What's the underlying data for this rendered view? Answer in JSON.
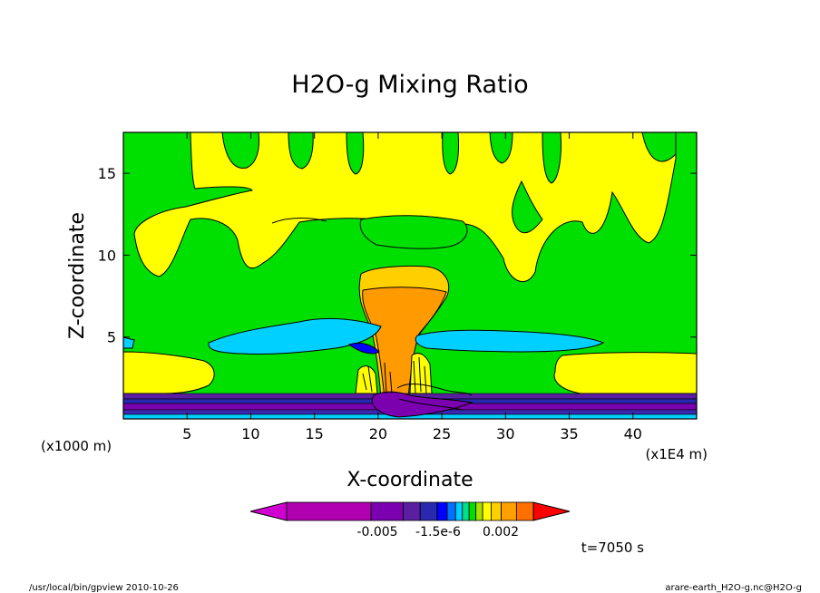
{
  "chart_data": {
    "type": "heatmap",
    "title": "H2O-g Mixing Ratio",
    "xlabel": "X-coordinate",
    "ylabel": "Z-coordinate",
    "x_unit_left": "(x1000 m)",
    "x_unit_right": "(x1E4 m)",
    "xlim": [
      0,
      45
    ],
    "ylim": [
      0,
      17.5
    ],
    "x_ticks": [
      5,
      10,
      15,
      20,
      25,
      30,
      35,
      40
    ],
    "x_tick_labels": [
      "5",
      "10",
      "15",
      "20",
      "25",
      "30",
      "35",
      "40"
    ],
    "y_ticks": [
      5,
      10,
      15
    ],
    "y_tick_labels": [
      "5",
      "10",
      "15"
    ],
    "colorbar": {
      "colors": [
        "#d000d0",
        "#b000b0",
        "#7a00b0",
        "#5a1ea0",
        "#2828b0",
        "#0000ff",
        "#0070ff",
        "#00d0ff",
        "#00e08a",
        "#00e000",
        "#a8e000",
        "#ffff00",
        "#ffd000",
        "#ffa000",
        "#ff7000",
        "#ff0000"
      ],
      "labels": [
        "-0.005",
        "-1.5e-6",
        "0.002"
      ]
    },
    "time_label": "t=7050 s",
    "footer_left": "/usr/local/bin/gpview  2010-10-26",
    "footer_right": "arare-earth_H2O-g.nc@H2O-g"
  }
}
